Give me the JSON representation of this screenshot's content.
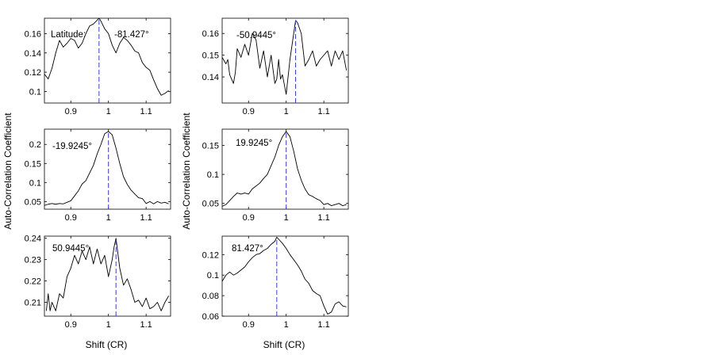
{
  "figure": {
    "ylabel": "Auto-Correlation Coefficient",
    "xlabel": "Shift (CR)"
  },
  "colors": {
    "curve": "#000000",
    "peak_line": "#3b3bd6",
    "axes": "#000000"
  },
  "chart_data": [
    {
      "type": "line",
      "annotation_prefix": "Latitude:",
      "annotation": "-81.427°",
      "xlim": [
        0.83,
        1.165
      ],
      "ylim": [
        0.088,
        0.176
      ],
      "yticks": [
        0.1,
        0.12,
        0.14,
        0.16
      ],
      "ytick_labels": [
        "0.1",
        "0.12",
        "0.14",
        "0.16"
      ],
      "xticks": [
        0.9,
        1.0,
        1.1
      ],
      "xtick_labels": [
        "0.9",
        "1",
        "1.1"
      ],
      "peak_x": 0.975,
      "series": [
        {
          "x": [
            0.83,
            0.84,
            0.85,
            0.86,
            0.87,
            0.88,
            0.89,
            0.9,
            0.91,
            0.92,
            0.93,
            0.94,
            0.95,
            0.96,
            0.97,
            0.975,
            0.98,
            0.99,
            1.0,
            1.01,
            1.02,
            1.03,
            1.04,
            1.05,
            1.06,
            1.07,
            1.08,
            1.09,
            1.1,
            1.11,
            1.12,
            1.13,
            1.14,
            1.15,
            1.16
          ],
          "y": [
            0.118,
            0.113,
            0.124,
            0.14,
            0.153,
            0.146,
            0.15,
            0.155,
            0.153,
            0.145,
            0.15,
            0.16,
            0.168,
            0.17,
            0.174,
            0.176,
            0.173,
            0.165,
            0.16,
            0.148,
            0.14,
            0.15,
            0.156,
            0.153,
            0.148,
            0.142,
            0.14,
            0.13,
            0.125,
            0.122,
            0.112,
            0.103,
            0.096,
            0.098,
            0.101
          ]
        }
      ]
    },
    {
      "type": "line",
      "annotation": "-50.9445°",
      "xlim": [
        0.83,
        1.165
      ],
      "ylim": [
        0.128,
        0.167
      ],
      "yticks": [
        0.14,
        0.15,
        0.16
      ],
      "ytick_labels": [
        "0.14",
        "0.15",
        "0.16"
      ],
      "xticks": [
        0.9,
        1.0,
        1.1
      ],
      "xtick_labels": [
        "0.9",
        "1",
        "1.1"
      ],
      "peak_x": 1.025,
      "series": [
        {
          "x": [
            0.83,
            0.84,
            0.845,
            0.85,
            0.86,
            0.865,
            0.87,
            0.88,
            0.89,
            0.9,
            0.91,
            0.92,
            0.93,
            0.94,
            0.95,
            0.96,
            0.97,
            0.975,
            0.98,
            0.985,
            0.99,
            1.0,
            1.01,
            1.02,
            1.025,
            1.03,
            1.04,
            1.05,
            1.06,
            1.07,
            1.08,
            1.09,
            1.1,
            1.11,
            1.12,
            1.13,
            1.14,
            1.15,
            1.16
          ],
          "y": [
            0.149,
            0.146,
            0.148,
            0.141,
            0.137,
            0.142,
            0.153,
            0.149,
            0.155,
            0.15,
            0.16,
            0.157,
            0.144,
            0.152,
            0.14,
            0.15,
            0.137,
            0.139,
            0.148,
            0.139,
            0.141,
            0.132,
            0.148,
            0.16,
            0.166,
            0.165,
            0.16,
            0.145,
            0.148,
            0.152,
            0.145,
            0.148,
            0.15,
            0.152,
            0.145,
            0.152,
            0.148,
            0.152,
            0.143
          ]
        }
      ]
    },
    {
      "type": "line",
      "annotation": "-19.9245°",
      "xlim": [
        0.83,
        1.165
      ],
      "ylim": [
        0.03,
        0.24
      ],
      "yticks": [
        0.05,
        0.1,
        0.15,
        0.2
      ],
      "ytick_labels": [
        "0.05",
        "0.1",
        "0.15",
        "0.2"
      ],
      "xticks": [
        0.9,
        1.0,
        1.1
      ],
      "xtick_labels": [
        "0.9",
        "1",
        "1.1"
      ],
      "peak_x": 1.0,
      "series": [
        {
          "x": [
            0.83,
            0.84,
            0.85,
            0.86,
            0.87,
            0.88,
            0.89,
            0.9,
            0.91,
            0.92,
            0.93,
            0.94,
            0.95,
            0.96,
            0.97,
            0.98,
            0.99,
            1.0,
            1.01,
            1.02,
            1.03,
            1.04,
            1.05,
            1.06,
            1.07,
            1.08,
            1.09,
            1.1,
            1.11,
            1.12,
            1.13,
            1.14,
            1.15,
            1.16
          ],
          "y": [
            0.04,
            0.043,
            0.045,
            0.043,
            0.045,
            0.044,
            0.048,
            0.052,
            0.065,
            0.078,
            0.096,
            0.105,
            0.125,
            0.145,
            0.175,
            0.2,
            0.228,
            0.234,
            0.225,
            0.19,
            0.15,
            0.115,
            0.095,
            0.08,
            0.07,
            0.06,
            0.058,
            0.045,
            0.05,
            0.044,
            0.05,
            0.046,
            0.048,
            0.044
          ]
        }
      ]
    },
    {
      "type": "line",
      "annotation": "19.9245°",
      "xlim": [
        0.83,
        1.165
      ],
      "ylim": [
        0.04,
        0.178
      ],
      "yticks": [
        0.05,
        0.1,
        0.15
      ],
      "ytick_labels": [
        "0.05",
        "0.1",
        "0.15"
      ],
      "xticks": [
        0.9,
        1.0,
        1.1
      ],
      "xtick_labels": [
        "0.9",
        "1",
        "1.1"
      ],
      "peak_x": 1.0,
      "series": [
        {
          "x": [
            0.83,
            0.84,
            0.85,
            0.86,
            0.87,
            0.88,
            0.89,
            0.9,
            0.91,
            0.92,
            0.93,
            0.94,
            0.95,
            0.96,
            0.97,
            0.98,
            0.99,
            1.0,
            1.01,
            1.02,
            1.03,
            1.04,
            1.05,
            1.06,
            1.07,
            1.08,
            1.09,
            1.1,
            1.11,
            1.12,
            1.13,
            1.14,
            1.15,
            1.16
          ],
          "y": [
            0.045,
            0.048,
            0.055,
            0.062,
            0.068,
            0.066,
            0.068,
            0.066,
            0.075,
            0.08,
            0.085,
            0.093,
            0.1,
            0.115,
            0.13,
            0.15,
            0.165,
            0.174,
            0.165,
            0.14,
            0.11,
            0.09,
            0.075,
            0.065,
            0.062,
            0.058,
            0.055,
            0.048,
            0.05,
            0.046,
            0.048,
            0.05,
            0.046,
            0.048
          ]
        }
      ]
    },
    {
      "type": "line",
      "annotation": "50.9445°",
      "xlim": [
        0.83,
        1.165
      ],
      "ylim": [
        0.2035,
        0.241
      ],
      "yticks": [
        0.21,
        0.22,
        0.23,
        0.24
      ],
      "ytick_labels": [
        "0.21",
        "0.22",
        "0.23",
        "0.24"
      ],
      "xticks": [
        0.9,
        1.0,
        1.1
      ],
      "xtick_labels": [
        "0.9",
        "1",
        "1.1"
      ],
      "peak_x": 1.02,
      "series": [
        {
          "x": [
            0.835,
            0.84,
            0.845,
            0.85,
            0.86,
            0.87,
            0.88,
            0.89,
            0.9,
            0.91,
            0.92,
            0.93,
            0.94,
            0.95,
            0.96,
            0.97,
            0.98,
            0.99,
            1.0,
            1.01,
            1.015,
            1.02,
            1.03,
            1.04,
            1.05,
            1.06,
            1.07,
            1.08,
            1.09,
            1.1,
            1.11,
            1.12,
            1.13,
            1.14,
            1.15,
            1.16
          ],
          "y": [
            0.206,
            0.214,
            0.206,
            0.21,
            0.206,
            0.214,
            0.212,
            0.222,
            0.226,
            0.232,
            0.228,
            0.234,
            0.23,
            0.236,
            0.228,
            0.235,
            0.228,
            0.232,
            0.222,
            0.23,
            0.236,
            0.24,
            0.226,
            0.218,
            0.221,
            0.216,
            0.21,
            0.211,
            0.208,
            0.212,
            0.207,
            0.208,
            0.21,
            0.206,
            0.21,
            0.213
          ]
        }
      ]
    },
    {
      "type": "line",
      "annotation": "81.427°",
      "xlim": [
        0.83,
        1.165
      ],
      "ylim": [
        0.06,
        0.138
      ],
      "yticks": [
        0.06,
        0.08,
        0.1,
        0.12
      ],
      "ytick_labels": [
        "0.06",
        "0.08",
        "0.1",
        "0.12"
      ],
      "xticks": [
        0.9,
        1.0,
        1.1
      ],
      "xtick_labels": [
        "0.9",
        "1",
        "1.1"
      ],
      "peak_x": 0.975,
      "series": [
        {
          "x": [
            0.83,
            0.84,
            0.85,
            0.86,
            0.87,
            0.88,
            0.89,
            0.9,
            0.91,
            0.92,
            0.93,
            0.94,
            0.95,
            0.96,
            0.97,
            0.975,
            0.98,
            0.99,
            1.0,
            1.01,
            1.02,
            1.03,
            1.04,
            1.05,
            1.06,
            1.07,
            1.08,
            1.09,
            1.1,
            1.11,
            1.12,
            1.13,
            1.14,
            1.15,
            1.16
          ],
          "y": [
            0.094,
            0.1,
            0.103,
            0.1,
            0.102,
            0.105,
            0.108,
            0.113,
            0.117,
            0.12,
            0.121,
            0.124,
            0.126,
            0.13,
            0.133,
            0.137,
            0.135,
            0.131,
            0.126,
            0.12,
            0.115,
            0.11,
            0.104,
            0.096,
            0.092,
            0.085,
            0.082,
            0.08,
            0.07,
            0.062,
            0.064,
            0.072,
            0.074,
            0.07,
            0.069
          ]
        }
      ]
    }
  ]
}
